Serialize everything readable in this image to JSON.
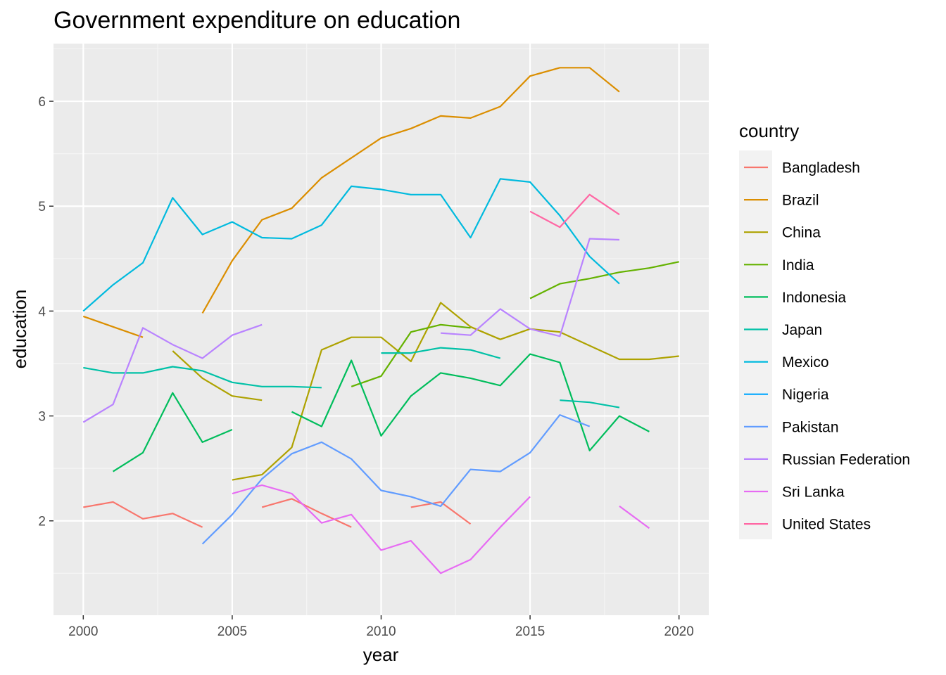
{
  "chart_data": {
    "type": "line",
    "title": "Government expenditure on education",
    "xlabel": "year",
    "ylabel": "education",
    "xlim": [
      1999,
      2021
    ],
    "ylim": [
      1.1,
      6.55
    ],
    "x_ticks": [
      2000,
      2005,
      2010,
      2015,
      2020
    ],
    "y_ticks": [
      2,
      3,
      4,
      5,
      6
    ],
    "grid": true,
    "legend": {
      "title": "country",
      "position": "right"
    },
    "series": [
      {
        "name": "Bangladesh",
        "color": "#F8766D",
        "points": [
          [
            2000,
            2.13
          ],
          [
            2001,
            2.18
          ],
          [
            2002,
            2.02
          ],
          [
            2003,
            2.07
          ],
          [
            2004,
            1.94
          ],
          [
            null,
            null
          ],
          [
            2006,
            2.13
          ],
          [
            2007,
            2.21
          ],
          [
            2008,
            2.07
          ],
          [
            2009,
            1.94
          ],
          [
            null,
            null
          ],
          [
            2011,
            2.13
          ],
          [
            2012,
            2.18
          ],
          [
            2013,
            1.97
          ]
        ]
      },
      {
        "name": "Brazil",
        "color": "#DB8E00",
        "points": [
          [
            2000,
            3.95
          ],
          [
            2001,
            3.85
          ],
          [
            2002,
            3.75
          ],
          [
            null,
            null
          ],
          [
            2004,
            3.98
          ],
          [
            2005,
            4.48
          ],
          [
            2006,
            4.87
          ],
          [
            2007,
            4.98
          ],
          [
            2008,
            5.27
          ],
          [
            2009,
            5.46
          ],
          [
            2010,
            5.65
          ],
          [
            2011,
            5.74
          ],
          [
            2012,
            5.86
          ],
          [
            2013,
            5.84
          ],
          [
            2014,
            5.95
          ],
          [
            2015,
            6.24
          ],
          [
            2016,
            6.32
          ],
          [
            2017,
            6.32
          ],
          [
            2018,
            6.09
          ]
        ]
      },
      {
        "name": "China",
        "color": "#AEA200",
        "points": [
          [
            2003,
            3.62
          ],
          [
            2004,
            3.36
          ],
          [
            2005,
            3.19
          ],
          [
            2006,
            3.15
          ],
          [
            null,
            null
          ],
          [
            2005,
            2.39
          ],
          [
            2006,
            2.44
          ],
          [
            2007,
            2.7
          ],
          [
            2008,
            3.63
          ],
          [
            2009,
            3.75
          ],
          [
            2010,
            3.75
          ],
          [
            2011,
            3.52
          ],
          [
            2012,
            4.08
          ],
          [
            2013,
            3.85
          ],
          [
            2014,
            3.73
          ],
          [
            2015,
            3.83
          ],
          [
            2016,
            3.8
          ],
          [
            2017,
            3.67
          ],
          [
            2018,
            3.54
          ],
          [
            2019,
            3.54
          ],
          [
            2020,
            3.57
          ]
        ]
      },
      {
        "name": "India",
        "color": "#64B200",
        "points": [
          [
            2009,
            3.28
          ],
          [
            2010,
            3.38
          ],
          [
            2011,
            3.8
          ],
          [
            2012,
            3.87
          ],
          [
            2013,
            3.84
          ],
          [
            null,
            null
          ],
          [
            2015,
            4.12
          ],
          [
            2016,
            4.26
          ],
          [
            2017,
            4.31
          ],
          [
            2018,
            4.37
          ],
          [
            2019,
            4.41
          ],
          [
            2020,
            4.47
          ]
        ]
      },
      {
        "name": "Indonesia",
        "color": "#00BD5C",
        "points": [
          [
            2001,
            2.47
          ],
          [
            2002,
            2.65
          ],
          [
            2003,
            3.22
          ],
          [
            2004,
            2.75
          ],
          [
            2005,
            2.87
          ],
          [
            null,
            null
          ],
          [
            2007,
            3.04
          ],
          [
            2008,
            2.9
          ],
          [
            2009,
            3.53
          ],
          [
            2010,
            2.81
          ],
          [
            2011,
            3.19
          ],
          [
            2012,
            3.41
          ],
          [
            2013,
            3.36
          ],
          [
            2014,
            3.29
          ],
          [
            2015,
            3.59
          ],
          [
            2016,
            3.51
          ],
          [
            2017,
            2.67
          ],
          [
            2018,
            3.0
          ],
          [
            2019,
            2.85
          ]
        ]
      },
      {
        "name": "Japan",
        "color": "#00C1A7",
        "points": [
          [
            2000,
            3.46
          ],
          [
            2001,
            3.41
          ],
          [
            2002,
            3.41
          ],
          [
            2003,
            3.47
          ],
          [
            2004,
            3.43
          ],
          [
            2005,
            3.32
          ],
          [
            2006,
            3.28
          ],
          [
            2007,
            3.28
          ],
          [
            2008,
            3.27
          ],
          [
            null,
            null
          ],
          [
            2010,
            3.6
          ],
          [
            2011,
            3.6
          ],
          [
            2012,
            3.65
          ],
          [
            2013,
            3.63
          ],
          [
            2014,
            3.55
          ],
          [
            null,
            null
          ],
          [
            2016,
            3.15
          ],
          [
            2017,
            3.13
          ],
          [
            2018,
            3.08
          ]
        ]
      },
      {
        "name": "Mexico",
        "color": "#00BADE",
        "points": [
          [
            2000,
            4.0
          ],
          [
            2001,
            4.25
          ],
          [
            2002,
            4.46
          ],
          [
            2003,
            5.08
          ],
          [
            2004,
            4.73
          ],
          [
            2005,
            4.85
          ],
          [
            2006,
            4.7
          ],
          [
            2007,
            4.69
          ],
          [
            2008,
            4.82
          ],
          [
            2009,
            5.19
          ],
          [
            2010,
            5.16
          ],
          [
            2011,
            5.11
          ],
          [
            2012,
            5.11
          ],
          [
            2013,
            4.7
          ],
          [
            2014,
            5.26
          ],
          [
            2015,
            5.23
          ],
          [
            2016,
            4.91
          ],
          [
            2017,
            4.52
          ],
          [
            2018,
            4.26
          ]
        ]
      },
      {
        "name": "Nigeria",
        "color": "#00A6FF",
        "points": []
      },
      {
        "name": "Pakistan",
        "color": "#619CFF",
        "points": [
          [
            2004,
            1.78
          ],
          [
            2005,
            2.06
          ],
          [
            2006,
            2.4
          ],
          [
            2007,
            2.64
          ],
          [
            2008,
            2.75
          ],
          [
            2009,
            2.59
          ],
          [
            2010,
            2.29
          ],
          [
            2011,
            2.23
          ],
          [
            2012,
            2.14
          ],
          [
            2013,
            2.49
          ],
          [
            2014,
            2.47
          ],
          [
            2015,
            2.65
          ],
          [
            2016,
            3.01
          ],
          [
            2017,
            2.9
          ]
        ]
      },
      {
        "name": "Russian Federation",
        "color": "#B983FF",
        "points": [
          [
            2000,
            2.94
          ],
          [
            2001,
            3.11
          ],
          [
            2002,
            3.84
          ],
          [
            2003,
            3.68
          ],
          [
            2004,
            3.55
          ],
          [
            2005,
            3.77
          ],
          [
            2006,
            3.87
          ],
          [
            null,
            null
          ],
          [
            2012,
            3.79
          ],
          [
            2013,
            3.77
          ],
          [
            2014,
            4.02
          ],
          [
            2015,
            3.83
          ],
          [
            2016,
            3.76
          ],
          [
            2017,
            4.69
          ],
          [
            2018,
            4.68
          ]
        ]
      },
      {
        "name": "Sri Lanka",
        "color": "#E76BF3",
        "points": [
          [
            2005,
            2.26
          ],
          [
            2006,
            2.34
          ],
          [
            2007,
            2.26
          ],
          [
            2008,
            1.98
          ],
          [
            2009,
            2.06
          ],
          [
            2010,
            1.72
          ],
          [
            2011,
            1.81
          ],
          [
            2012,
            1.5
          ],
          [
            2013,
            1.63
          ],
          [
            2014,
            1.94
          ],
          [
            2015,
            2.23
          ],
          [
            null,
            null
          ],
          [
            2018,
            2.14
          ],
          [
            2019,
            1.93
          ]
        ]
      },
      {
        "name": "United States",
        "color": "#FF67A4",
        "points": [
          [
            2015,
            4.95
          ],
          [
            2016,
            4.8
          ],
          [
            2017,
            5.11
          ],
          [
            2018,
            4.92
          ]
        ]
      }
    ]
  }
}
